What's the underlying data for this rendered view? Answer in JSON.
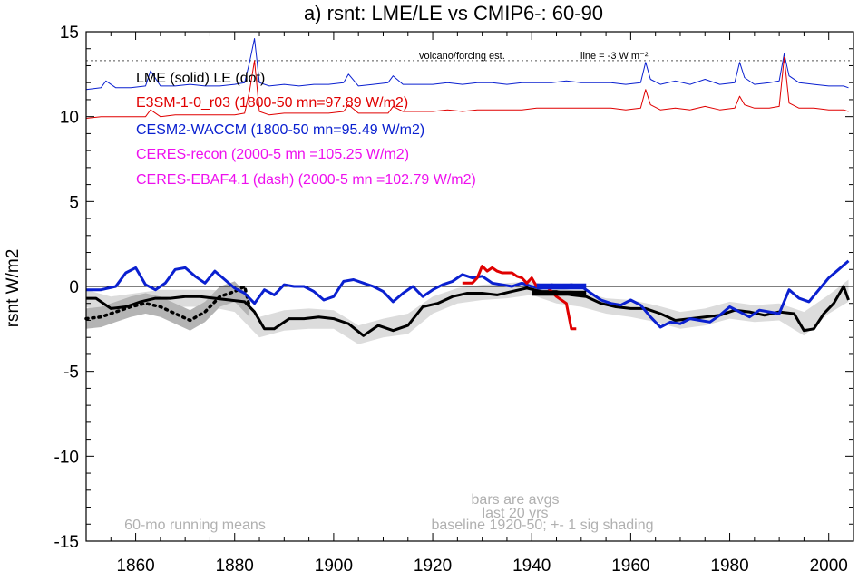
{
  "chart_data": {
    "type": "line",
    "title": "a) rsnt: LME/LE vs CMIP6-: 60-90",
    "ylabel": "rsnt W/m2",
    "xlim": [
      1850,
      2005
    ],
    "ylim": [
      -15,
      15
    ],
    "x_ticks": [
      1860,
      1880,
      1900,
      1920,
      1940,
      1960,
      1980,
      2000
    ],
    "y_ticks": [
      -15,
      -10,
      -5,
      0,
      5,
      10,
      15
    ],
    "zero_line": 0,
    "reference_line": {
      "y": 13.3,
      "label": "volcano/forcing est.",
      "note": "line = -3 W m⁻²"
    },
    "legend": [
      {
        "text": "LME (solid)   LE (dot)",
        "color": "#000000"
      },
      {
        "text": "E3SM-1-0_r03 (1800-50 mn=97.89 W/m2)",
        "color": "#e00000"
      },
      {
        "text": "CESM2-WACCM (1800-50 mn=95.49 W/m2)",
        "color": "#0a20d0"
      },
      {
        "text": "CERES-recon (2000-5 mn =105.25 W/m2)",
        "color": "#ee10ee"
      },
      {
        "text": "CERES-EBAF4.1 (dash) (2000-5 mn =102.79 W/m2)",
        "color": "#ee10ee"
      }
    ],
    "annotations": {
      "bars": [
        "bars are avgs",
        "last 20 yrs"
      ],
      "baseline": "baseline 1920-50; +- 1 sig shading",
      "running": "60-mo running means"
    },
    "series": [
      {
        "name": "forcing-blue",
        "color": "#0a20d0",
        "x": [
          1850,
          1853,
          1854,
          1856,
          1859,
          1862,
          1863,
          1865,
          1868,
          1871,
          1874,
          1877,
          1880,
          1882,
          1883,
          1884,
          1885,
          1887,
          1890,
          1893,
          1896,
          1899,
          1902,
          1903,
          1905,
          1908,
          1911,
          1912,
          1914,
          1917,
          1920,
          1923,
          1926,
          1929,
          1932,
          1935,
          1938,
          1941,
          1944,
          1947,
          1950,
          1953,
          1956,
          1959,
          1962,
          1963,
          1964,
          1966,
          1969,
          1972,
          1975,
          1978,
          1981,
          1982,
          1983,
          1985,
          1988,
          1990,
          1991,
          1992,
          1994,
          1997,
          2000,
          2003,
          2004
        ],
        "y": [
          11.6,
          11.7,
          12.1,
          11.7,
          11.7,
          11.8,
          12.7,
          11.8,
          11.8,
          11.9,
          11.8,
          11.8,
          11.9,
          12.0,
          13.2,
          14.6,
          12.0,
          11.8,
          11.9,
          11.8,
          11.9,
          11.9,
          12.0,
          12.5,
          11.8,
          11.9,
          12.0,
          12.4,
          11.9,
          11.9,
          11.9,
          12.0,
          11.9,
          12.0,
          12.0,
          11.9,
          12.0,
          12.0,
          12.0,
          12.1,
          12.0,
          12.0,
          12.0,
          11.9,
          12.0,
          13.2,
          12.2,
          11.9,
          12.1,
          11.9,
          12.2,
          11.9,
          12.0,
          13.2,
          12.3,
          11.9,
          12.0,
          12.1,
          13.7,
          12.4,
          12.0,
          11.9,
          11.8,
          11.8,
          11.7
        ]
      },
      {
        "name": "forcing-red",
        "color": "#e00000",
        "x": [
          1850,
          1853,
          1856,
          1859,
          1862,
          1863,
          1865,
          1868,
          1871,
          1874,
          1877,
          1880,
          1882,
          1883,
          1884,
          1885,
          1887,
          1890,
          1893,
          1896,
          1899,
          1902,
          1903,
          1905,
          1908,
          1911,
          1912,
          1914,
          1917,
          1920,
          1923,
          1926,
          1929,
          1932,
          1935,
          1938,
          1941,
          1944,
          1947,
          1950,
          1953,
          1956,
          1959,
          1962,
          1963,
          1964,
          1966,
          1969,
          1972,
          1975,
          1978,
          1981,
          1982,
          1983,
          1985,
          1988,
          1990,
          1991,
          1992,
          1994,
          1997,
          2000,
          2003,
          2004
        ],
        "y": [
          9.9,
          10.0,
          10.0,
          10.0,
          10.0,
          10.4,
          10.0,
          10.1,
          10.1,
          10.1,
          10.1,
          10.1,
          10.2,
          11.5,
          13.3,
          10.3,
          10.1,
          10.2,
          10.2,
          10.2,
          10.2,
          10.3,
          10.7,
          10.2,
          10.2,
          10.2,
          10.6,
          10.3,
          10.3,
          10.3,
          10.4,
          10.3,
          10.4,
          10.4,
          10.4,
          10.4,
          10.5,
          10.5,
          10.5,
          10.5,
          10.5,
          10.5,
          10.4,
          10.5,
          11.6,
          10.7,
          10.4,
          10.5,
          10.4,
          10.6,
          10.4,
          10.5,
          11.2,
          10.7,
          10.5,
          10.5,
          10.6,
          13.5,
          10.8,
          10.5,
          10.5,
          10.4,
          10.4,
          10.3
        ]
      },
      {
        "name": "LME",
        "color": "#000000",
        "x": [
          1850,
          1852,
          1855,
          1858,
          1861,
          1864,
          1867,
          1870,
          1873,
          1876,
          1879,
          1882,
          1884,
          1886,
          1888,
          1891,
          1894,
          1897,
          1900,
          1903,
          1906,
          1909,
          1912,
          1915,
          1918,
          1921,
          1924,
          1927,
          1930,
          1933,
          1936,
          1939,
          1942,
          1945,
          1948,
          1951,
          1954,
          1957,
          1960,
          1963,
          1966,
          1969,
          1972,
          1975,
          1978,
          1981,
          1984,
          1987,
          1990,
          1993,
          1995,
          1997,
          1999,
          2001,
          2003,
          2004
        ],
        "y": [
          -0.7,
          -0.7,
          -1.3,
          -1.2,
          -0.9,
          -0.7,
          -0.7,
          -0.6,
          -0.6,
          -0.7,
          -0.8,
          -0.9,
          -1.5,
          -2.5,
          -2.5,
          -1.9,
          -1.9,
          -1.8,
          -1.9,
          -2.2,
          -2.9,
          -2.3,
          -2.6,
          -2.3,
          -1.2,
          -1.0,
          -0.6,
          -0.4,
          -0.4,
          -0.5,
          -0.3,
          -0.1,
          -0.3,
          -0.3,
          -0.5,
          -0.6,
          -1.0,
          -1.2,
          -1.3,
          -1.3,
          -1.6,
          -2.0,
          -1.9,
          -1.8,
          -1.7,
          -1.4,
          -1.5,
          -1.7,
          -1.5,
          -1.6,
          -2.6,
          -2.5,
          -1.6,
          -1.0,
          0.0,
          -0.8
        ]
      },
      {
        "name": "LE",
        "color": "#000000",
        "dash": true,
        "x": [
          1850,
          1853,
          1856,
          1859,
          1862,
          1865,
          1868,
          1871,
          1874,
          1877,
          1880,
          1882,
          1883
        ],
        "y": [
          -1.9,
          -1.8,
          -1.5,
          -1.2,
          -1.0,
          -1.2,
          -1.6,
          -2.0,
          -1.5,
          -0.6,
          -0.3,
          0.0,
          -1.2
        ]
      },
      {
        "name": "CESM2-WACCM",
        "color": "#0a20d0",
        "x": [
          1850,
          1853,
          1856,
          1858,
          1860,
          1862,
          1864,
          1866,
          1868,
          1870,
          1872,
          1874,
          1876,
          1878,
          1880,
          1882,
          1884,
          1886,
          1888,
          1890,
          1892,
          1894,
          1896,
          1898,
          1900,
          1902,
          1904,
          1906,
          1908,
          1910,
          1912,
          1914,
          1916,
          1918,
          1920,
          1922,
          1924,
          1926,
          1928,
          1930,
          1932,
          1934,
          1936,
          1938,
          1940,
          1942,
          1944,
          1946,
          1948,
          1950,
          1952,
          1954,
          1956,
          1958,
          1960,
          1962,
          1964,
          1966,
          1968,
          1970,
          1972,
          1974,
          1976,
          1978,
          1980,
          1982,
          1984,
          1986,
          1988,
          1990,
          1992,
          1994,
          1996,
          1998,
          2000,
          2002,
          2004
        ],
        "y": [
          -0.2,
          -0.2,
          0.0,
          0.8,
          1.1,
          0.1,
          -0.2,
          0.2,
          1.0,
          1.1,
          0.6,
          0.2,
          0.9,
          0.4,
          -0.1,
          -0.4,
          -1.0,
          -0.2,
          -0.5,
          0.1,
          0.0,
          0.0,
          -0.3,
          -0.8,
          -0.6,
          0.3,
          0.4,
          0.2,
          0.0,
          -0.3,
          -0.9,
          -0.4,
          0.0,
          -0.6,
          -0.2,
          0.1,
          0.3,
          0.7,
          0.5,
          0.6,
          0.2,
          0.1,
          0.0,
          0.2,
          0.0,
          -0.1,
          0.1,
          0.0,
          0.1,
          0.0,
          -0.4,
          -0.8,
          -1.0,
          -1.1,
          -0.8,
          -1.1,
          -1.8,
          -2.4,
          -2.1,
          -2.2,
          -1.9,
          -2.0,
          -2.1,
          -1.7,
          -1.2,
          -1.5,
          -1.8,
          -1.4,
          -1.5,
          -1.6,
          -0.2,
          -0.7,
          -0.9,
          -0.2,
          0.5,
          1.0,
          1.5
        ]
      },
      {
        "name": "E3SM-1-0_r03",
        "color": "#e00000",
        "x": [
          1926,
          1928,
          1929,
          1930,
          1931,
          1932,
          1933,
          1934,
          1936,
          1937,
          1938,
          1939,
          1940,
          1941,
          1942,
          1943,
          1944,
          1945,
          1946,
          1947,
          1948,
          1949
        ],
        "y": [
          0.2,
          0.2,
          0.5,
          1.2,
          0.9,
          1.1,
          0.9,
          0.8,
          0.8,
          0.6,
          0.5,
          0.2,
          0.5,
          0.0,
          0.0,
          0.0,
          -0.3,
          -0.6,
          -0.8,
          -1.0,
          -2.5,
          -2.5
        ]
      }
    ],
    "shading": {
      "LME_x": [
        1850,
        1855,
        1860,
        1865,
        1870,
        1875,
        1880,
        1885,
        1890,
        1895,
        1900,
        1905,
        1910,
        1915,
        1920,
        1925,
        1930,
        1935,
        1940,
        1945,
        1950,
        1955,
        1960,
        1965,
        1970,
        1975,
        1980,
        1985,
        1990,
        1995,
        2000,
        2004
      ],
      "LME_upper": [
        -0.2,
        -0.6,
        -0.4,
        -0.2,
        -0.2,
        -0.2,
        -0.3,
        -1.8,
        -1.4,
        -1.3,
        -1.4,
        -2.3,
        -1.9,
        -1.6,
        -0.6,
        -0.1,
        0.1,
        0.2,
        0.3,
        -0.1,
        -0.3,
        -0.7,
        -0.8,
        -1.1,
        -1.5,
        -1.3,
        -0.9,
        -1.1,
        -1.0,
        -1.5,
        -0.5,
        0.4
      ],
      "LME_lower": [
        -1.2,
        -1.9,
        -1.6,
        -1.3,
        -1.2,
        -1.2,
        -1.5,
        -3.0,
        -2.6,
        -2.5,
        -2.5,
        -3.4,
        -3.0,
        -2.8,
        -1.6,
        -1.0,
        -0.8,
        -0.7,
        -0.5,
        -1.0,
        -1.2,
        -1.6,
        -1.8,
        -2.1,
        -2.5,
        -2.3,
        -1.9,
        -2.1,
        -2.0,
        -2.9,
        -1.6,
        -0.9
      ],
      "LE_x": [
        1850,
        1853,
        1856,
        1859,
        1862,
        1865,
        1868,
        1871,
        1874,
        1877,
        1880,
        1883
      ],
      "LE_upper": [
        -1.3,
        -1.2,
        -0.9,
        -0.6,
        -0.4,
        -0.6,
        -1.0,
        -1.4,
        -0.9,
        0.0,
        0.3,
        -0.6
      ],
      "LE_lower": [
        -2.5,
        -2.4,
        -2.1,
        -1.8,
        -1.6,
        -1.8,
        -2.2,
        -2.6,
        -2.1,
        -1.2,
        -0.9,
        -1.8
      ]
    },
    "bars": [
      {
        "name": "avg-blue",
        "color": "#0a20d0",
        "x0": 1941,
        "x1": 1951,
        "y": 0.0,
        "thick": 0.35
      },
      {
        "name": "avg-black",
        "color": "#000000",
        "x0": 1940,
        "x1": 1951,
        "y": -0.4,
        "thick": 0.3
      }
    ]
  }
}
